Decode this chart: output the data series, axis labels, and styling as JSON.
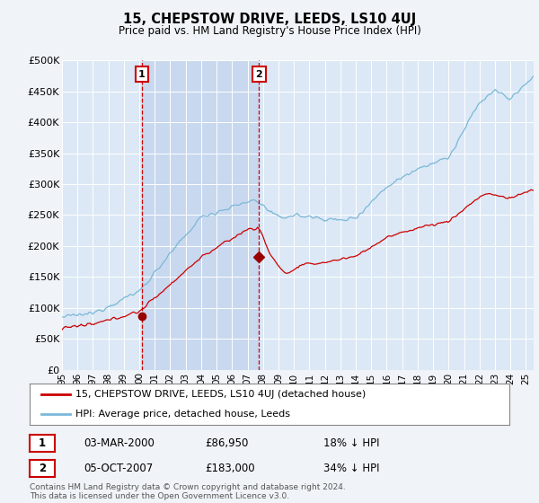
{
  "title": "15, CHEPSTOW DRIVE, LEEDS, LS10 4UJ",
  "subtitle": "Price paid vs. HM Land Registry's House Price Index (HPI)",
  "bg_color": "#f0f4f8",
  "plot_bg_color": "#dce8f5",
  "shaded_region_color": "#c8d8ee",
  "grid_color": "#ffffff",
  "hpi_color": "#7ab8d9",
  "price_color": "#cc0000",
  "marker_color": "#990000",
  "annotation_box_color": "#cc0000",
  "ylim": [
    0,
    500000
  ],
  "yticks": [
    0,
    50000,
    100000,
    150000,
    200000,
    250000,
    300000,
    350000,
    400000,
    450000,
    500000
  ],
  "ytick_labels": [
    "£0",
    "£50K",
    "£100K",
    "£150K",
    "£200K",
    "£250K",
    "£300K",
    "£350K",
    "£400K",
    "£450K",
    "£500K"
  ],
  "sale1_year": 2000.17,
  "sale1_price": 86950,
  "sale1_label": "1",
  "sale1_date": "03-MAR-2000",
  "sale1_pct": "18% ↓ HPI",
  "sale2_year": 2007.75,
  "sale2_price": 183000,
  "sale2_label": "2",
  "sale2_date": "05-OCT-2007",
  "sale2_pct": "34% ↓ HPI",
  "legend_line1": "15, CHEPSTOW DRIVE, LEEDS, LS10 4UJ (detached house)",
  "legend_line2": "HPI: Average price, detached house, Leeds",
  "footer": "Contains HM Land Registry data © Crown copyright and database right 2024.\nThis data is licensed under the Open Government Licence v3.0.",
  "xmin": 1995.0,
  "xmax": 2025.5
}
